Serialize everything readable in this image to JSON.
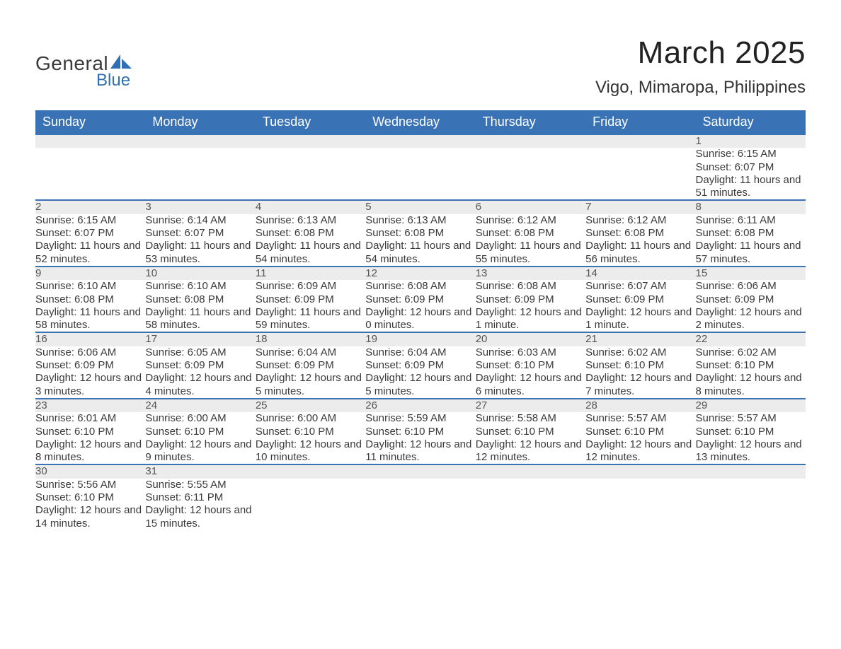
{
  "logo": {
    "text1": "General",
    "text2": "Blue",
    "accent_color": "#2f6fb3"
  },
  "title": "March 2025",
  "location": "Vigo, Mimaropa, Philippines",
  "colors": {
    "header_bg": "#3973b6",
    "header_text": "#ffffff",
    "row_divider": "#3973b6",
    "daynum_bg": "#ececec",
    "text": "#3a3a3a"
  },
  "day_headers": [
    "Sunday",
    "Monday",
    "Tuesday",
    "Wednesday",
    "Thursday",
    "Friday",
    "Saturday"
  ],
  "weeks": [
    [
      null,
      null,
      null,
      null,
      null,
      null,
      {
        "n": "1",
        "sunrise": "6:15 AM",
        "sunset": "6:07 PM",
        "daylight": "11 hours and 51 minutes."
      }
    ],
    [
      {
        "n": "2",
        "sunrise": "6:15 AM",
        "sunset": "6:07 PM",
        "daylight": "11 hours and 52 minutes."
      },
      {
        "n": "3",
        "sunrise": "6:14 AM",
        "sunset": "6:07 PM",
        "daylight": "11 hours and 53 minutes."
      },
      {
        "n": "4",
        "sunrise": "6:13 AM",
        "sunset": "6:08 PM",
        "daylight": "11 hours and 54 minutes."
      },
      {
        "n": "5",
        "sunrise": "6:13 AM",
        "sunset": "6:08 PM",
        "daylight": "11 hours and 54 minutes."
      },
      {
        "n": "6",
        "sunrise": "6:12 AM",
        "sunset": "6:08 PM",
        "daylight": "11 hours and 55 minutes."
      },
      {
        "n": "7",
        "sunrise": "6:12 AM",
        "sunset": "6:08 PM",
        "daylight": "11 hours and 56 minutes."
      },
      {
        "n": "8",
        "sunrise": "6:11 AM",
        "sunset": "6:08 PM",
        "daylight": "11 hours and 57 minutes."
      }
    ],
    [
      {
        "n": "9",
        "sunrise": "6:10 AM",
        "sunset": "6:08 PM",
        "daylight": "11 hours and 58 minutes."
      },
      {
        "n": "10",
        "sunrise": "6:10 AM",
        "sunset": "6:08 PM",
        "daylight": "11 hours and 58 minutes."
      },
      {
        "n": "11",
        "sunrise": "6:09 AM",
        "sunset": "6:09 PM",
        "daylight": "11 hours and 59 minutes."
      },
      {
        "n": "12",
        "sunrise": "6:08 AM",
        "sunset": "6:09 PM",
        "daylight": "12 hours and 0 minutes."
      },
      {
        "n": "13",
        "sunrise": "6:08 AM",
        "sunset": "6:09 PM",
        "daylight": "12 hours and 1 minute."
      },
      {
        "n": "14",
        "sunrise": "6:07 AM",
        "sunset": "6:09 PM",
        "daylight": "12 hours and 1 minute."
      },
      {
        "n": "15",
        "sunrise": "6:06 AM",
        "sunset": "6:09 PM",
        "daylight": "12 hours and 2 minutes."
      }
    ],
    [
      {
        "n": "16",
        "sunrise": "6:06 AM",
        "sunset": "6:09 PM",
        "daylight": "12 hours and 3 minutes."
      },
      {
        "n": "17",
        "sunrise": "6:05 AM",
        "sunset": "6:09 PM",
        "daylight": "12 hours and 4 minutes."
      },
      {
        "n": "18",
        "sunrise": "6:04 AM",
        "sunset": "6:09 PM",
        "daylight": "12 hours and 5 minutes."
      },
      {
        "n": "19",
        "sunrise": "6:04 AM",
        "sunset": "6:09 PM",
        "daylight": "12 hours and 5 minutes."
      },
      {
        "n": "20",
        "sunrise": "6:03 AM",
        "sunset": "6:10 PM",
        "daylight": "12 hours and 6 minutes."
      },
      {
        "n": "21",
        "sunrise": "6:02 AM",
        "sunset": "6:10 PM",
        "daylight": "12 hours and 7 minutes."
      },
      {
        "n": "22",
        "sunrise": "6:02 AM",
        "sunset": "6:10 PM",
        "daylight": "12 hours and 8 minutes."
      }
    ],
    [
      {
        "n": "23",
        "sunrise": "6:01 AM",
        "sunset": "6:10 PM",
        "daylight": "12 hours and 8 minutes."
      },
      {
        "n": "24",
        "sunrise": "6:00 AM",
        "sunset": "6:10 PM",
        "daylight": "12 hours and 9 minutes."
      },
      {
        "n": "25",
        "sunrise": "6:00 AM",
        "sunset": "6:10 PM",
        "daylight": "12 hours and 10 minutes."
      },
      {
        "n": "26",
        "sunrise": "5:59 AM",
        "sunset": "6:10 PM",
        "daylight": "12 hours and 11 minutes."
      },
      {
        "n": "27",
        "sunrise": "5:58 AM",
        "sunset": "6:10 PM",
        "daylight": "12 hours and 12 minutes."
      },
      {
        "n": "28",
        "sunrise": "5:57 AM",
        "sunset": "6:10 PM",
        "daylight": "12 hours and 12 minutes."
      },
      {
        "n": "29",
        "sunrise": "5:57 AM",
        "sunset": "6:10 PM",
        "daylight": "12 hours and 13 minutes."
      }
    ],
    [
      {
        "n": "30",
        "sunrise": "5:56 AM",
        "sunset": "6:10 PM",
        "daylight": "12 hours and 14 minutes."
      },
      {
        "n": "31",
        "sunrise": "5:55 AM",
        "sunset": "6:11 PM",
        "daylight": "12 hours and 15 minutes."
      },
      null,
      null,
      null,
      null,
      null
    ]
  ],
  "labels": {
    "sunrise": "Sunrise: ",
    "sunset": "Sunset: ",
    "daylight": "Daylight: "
  }
}
